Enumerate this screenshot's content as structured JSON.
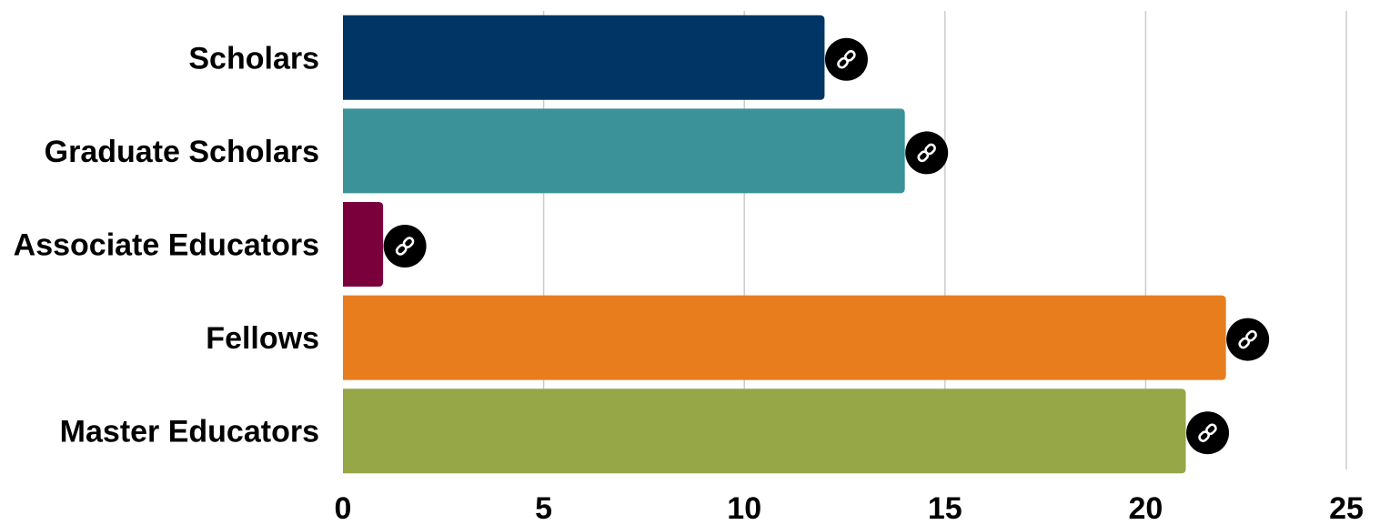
{
  "chart_data": {
    "type": "bar",
    "orientation": "horizontal",
    "categories": [
      "Scholars",
      "Graduate Scholars",
      "Associate Educators",
      "Fellows",
      "Master Educators"
    ],
    "values": [
      12,
      14,
      1,
      22,
      21
    ],
    "colors": [
      "#003566",
      "#3b9399",
      "#7a003c",
      "#e87d1e",
      "#95a747"
    ],
    "xlim": [
      0,
      25
    ],
    "xticks": [
      0,
      5,
      10,
      15,
      20,
      25
    ],
    "grid": true,
    "bar_end_icon": "link-icon"
  }
}
